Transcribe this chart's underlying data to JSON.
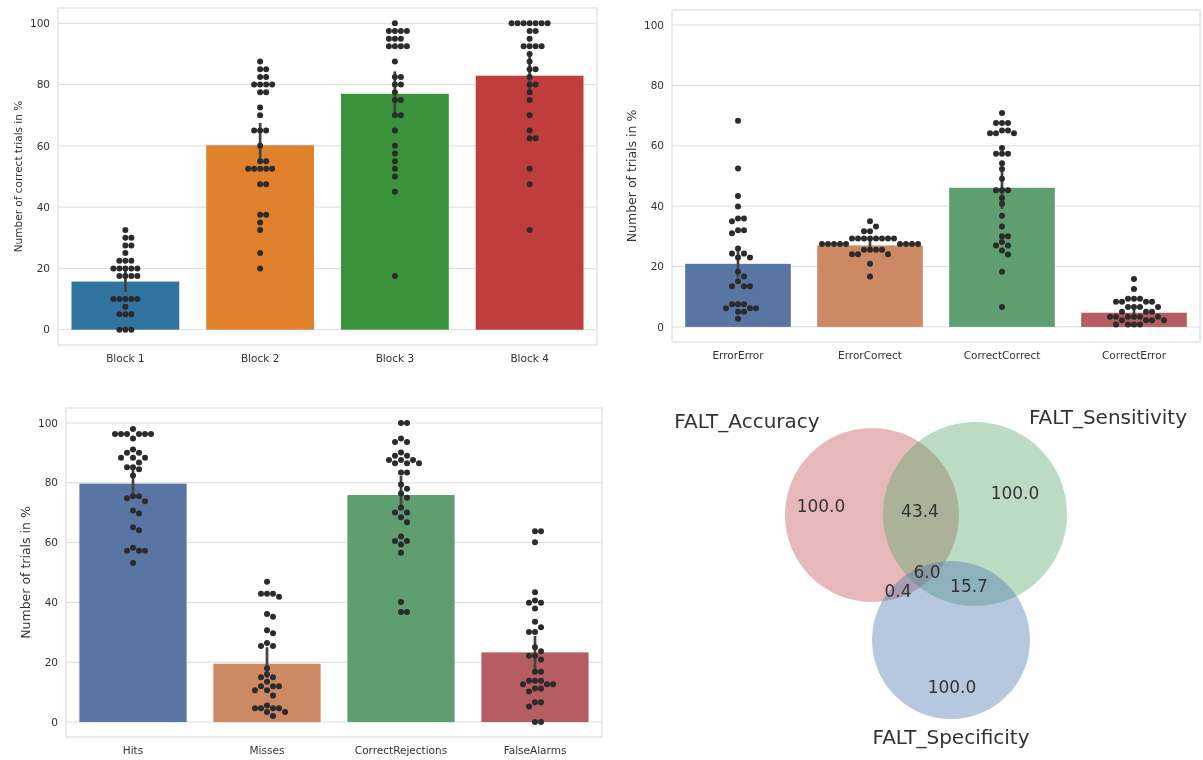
{
  "chart_data": [
    {
      "type": "bar",
      "ylabel": "Number of correct trials in %",
      "categories": [
        "Block 1",
        "Block 2",
        "Block 3",
        "Block 4"
      ],
      "ylim": [
        -5,
        105
      ],
      "yticks": [
        0,
        20,
        40,
        60,
        80,
        100
      ],
      "grid": "y",
      "series": [
        {
          "values": [
            15.7,
            60.2,
            77.0,
            82.9
          ],
          "colors": [
            "#3274a1",
            "#e1812c",
            "#3a923a",
            "#c03d3e"
          ],
          "errors": [
            [
              12.3,
              20.1
            ],
            [
              55.8,
              67.5
            ],
            [
              70.3,
              84.3
            ],
            [
              77.8,
              90.3
            ]
          ]
        },
        {
          "type": "scatter",
          "color": "#2b2b2b",
          "marker": "circle",
          "x": [
            "Block 1",
            "Block 1",
            "Block 1",
            "Block 1",
            "Block 1",
            "Block 1",
            "Block 1",
            "Block 1",
            "Block 1",
            "Block 1",
            "Block 1",
            "Block 1",
            "Block 1",
            "Block 1",
            "Block 1",
            "Block 1",
            "Block 1",
            "Block 1",
            "Block 1",
            "Block 1",
            "Block 1",
            "Block 1",
            "Block 1",
            "Block 1",
            "Block 1",
            "Block 1",
            "Block 1",
            "Block 1",
            "Block 1",
            "Block 1",
            "Block 2",
            "Block 2",
            "Block 2",
            "Block 2",
            "Block 2",
            "Block 2",
            "Block 2",
            "Block 2",
            "Block 2",
            "Block 2",
            "Block 2",
            "Block 2",
            "Block 2",
            "Block 2",
            "Block 2",
            "Block 2",
            "Block 2",
            "Block 2",
            "Block 2",
            "Block 2",
            "Block 2",
            "Block 2",
            "Block 2",
            "Block 2",
            "Block 2",
            "Block 2",
            "Block 2",
            "Block 2",
            "Block 2",
            "Block 2",
            "Block 2",
            "Block 2",
            "Block 3",
            "Block 3",
            "Block 3",
            "Block 3",
            "Block 3",
            "Block 3",
            "Block 3",
            "Block 3",
            "Block 3",
            "Block 3",
            "Block 3",
            "Block 3",
            "Block 3",
            "Block 3",
            "Block 3",
            "Block 3",
            "Block 3",
            "Block 3",
            "Block 3",
            "Block 3",
            "Block 3",
            "Block 3",
            "Block 3",
            "Block 3",
            "Block 3",
            "Block 3",
            "Block 3",
            "Block 3",
            "Block 3",
            "Block 3",
            "Block 4",
            "Block 4",
            "Block 4",
            "Block 4",
            "Block 4",
            "Block 4",
            "Block 4",
            "Block 4",
            "Block 4",
            "Block 4",
            "Block 4",
            "Block 4",
            "Block 4",
            "Block 4",
            "Block 4",
            "Block 4",
            "Block 4",
            "Block 4",
            "Block 4",
            "Block 4",
            "Block 4",
            "Block 4",
            "Block 4",
            "Block 4",
            "Block 4",
            "Block 4",
            "Block 4",
            "Block 4",
            "Block 4",
            "Block 4"
          ],
          "values": [
            32.5,
            30,
            30,
            27.5,
            27.5,
            25,
            22.5,
            22.5,
            22.5,
            20,
            20,
            20,
            20,
            20,
            17.5,
            17.5,
            17.5,
            17.5,
            10,
            10,
            10,
            10,
            10,
            7.5,
            5,
            5,
            5,
            0,
            0,
            0,
            87.5,
            85,
            85,
            82.5,
            82.5,
            80,
            80,
            80,
            80,
            77.5,
            77.5,
            72.5,
            70,
            65,
            65,
            65,
            60,
            55,
            55,
            52.5,
            52.5,
            52.5,
            52.5,
            52.5,
            47.5,
            47.5,
            37.5,
            37.5,
            35,
            32.5,
            25,
            20,
            100,
            97.5,
            97.5,
            97.5,
            97.5,
            95,
            95,
            95,
            92.5,
            92.5,
            92.5,
            92.5,
            87.5,
            82.5,
            82.5,
            80,
            80,
            77.5,
            75,
            75,
            70,
            70,
            65,
            60,
            57.5,
            55,
            52.5,
            50,
            45,
            17.5,
            100,
            100,
            100,
            100,
            100,
            100,
            100,
            97.5,
            97.5,
            95,
            92.5,
            92.5,
            92.5,
            92.5,
            90,
            87.5,
            85,
            85,
            82.5,
            80,
            80,
            77.5,
            75,
            70,
            65,
            62.5,
            62.5,
            52.5,
            47.5,
            32.5
          ]
        }
      ]
    },
    {
      "type": "bar",
      "ylabel": "Number of trials in %",
      "categories": [
        "ErrorError",
        "ErrorCorrect",
        "CorrectCorrect",
        "CorrectError"
      ],
      "ylim": [
        -5,
        105
      ],
      "yticks": [
        0,
        20,
        40,
        60,
        80,
        100
      ],
      "grid": "y",
      "series": [
        {
          "values": [
            20.9,
            27.0,
            46.1,
            4.7
          ],
          "colors": [
            "#5975a4",
            "#cc8963",
            "#5f9e6e",
            "#b55d60"
          ],
          "errors": [
            [
              16.4,
              26.6
            ],
            [
              25.3,
              28.7
            ],
            [
              39.1,
              53.1
            ],
            [
              3.5,
              6.3
            ]
          ]
        },
        {
          "type": "scatter",
          "color": "#2b2b2b",
          "marker": "circle",
          "x": [
            "ErrorError",
            "ErrorError",
            "ErrorError",
            "ErrorError",
            "ErrorError",
            "ErrorError",
            "ErrorError",
            "ErrorError",
            "ErrorError",
            "ErrorError",
            "ErrorError",
            "ErrorError",
            "ErrorError",
            "ErrorError",
            "ErrorError",
            "ErrorError",
            "ErrorError",
            "ErrorError",
            "ErrorError",
            "ErrorError",
            "ErrorError",
            "ErrorError",
            "ErrorError",
            "ErrorError",
            "ErrorError",
            "ErrorError",
            "ErrorError",
            "ErrorError",
            "ErrorError",
            "ErrorError",
            "ErrorCorrect",
            "ErrorCorrect",
            "ErrorCorrect",
            "ErrorCorrect",
            "ErrorCorrect",
            "ErrorCorrect",
            "ErrorCorrect",
            "ErrorCorrect",
            "ErrorCorrect",
            "ErrorCorrect",
            "ErrorCorrect",
            "ErrorCorrect",
            "ErrorCorrect",
            "ErrorCorrect",
            "ErrorCorrect",
            "ErrorCorrect",
            "ErrorCorrect",
            "ErrorCorrect",
            "ErrorCorrect",
            "ErrorCorrect",
            "ErrorCorrect",
            "ErrorCorrect",
            "ErrorCorrect",
            "ErrorCorrect",
            "ErrorCorrect",
            "ErrorCorrect",
            "ErrorCorrect",
            "ErrorCorrect",
            "ErrorCorrect",
            "ErrorCorrect",
            "CorrectCorrect",
            "CorrectCorrect",
            "CorrectCorrect",
            "CorrectCorrect",
            "CorrectCorrect",
            "CorrectCorrect",
            "CorrectCorrect",
            "CorrectCorrect",
            "CorrectCorrect",
            "CorrectCorrect",
            "CorrectCorrect",
            "CorrectCorrect",
            "CorrectCorrect",
            "CorrectCorrect",
            "CorrectCorrect",
            "CorrectCorrect",
            "CorrectCorrect",
            "CorrectCorrect",
            "CorrectCorrect",
            "CorrectCorrect",
            "CorrectCorrect",
            "CorrectCorrect",
            "CorrectCorrect",
            "CorrectCorrect",
            "CorrectCorrect",
            "CorrectCorrect",
            "CorrectCorrect",
            "CorrectCorrect",
            "CorrectCorrect",
            "CorrectCorrect",
            "CorrectCorrect",
            "CorrectCorrect",
            "CorrectError",
            "CorrectError",
            "CorrectError",
            "CorrectError",
            "CorrectError",
            "CorrectError",
            "CorrectError",
            "CorrectError",
            "CorrectError",
            "CorrectError",
            "CorrectError",
            "CorrectError",
            "CorrectError",
            "CorrectError",
            "CorrectError",
            "CorrectError",
            "CorrectError",
            "CorrectError",
            "CorrectError",
            "CorrectError",
            "CorrectError",
            "CorrectError",
            "CorrectError",
            "CorrectError",
            "CorrectError",
            "CorrectError",
            "CorrectError",
            "CorrectError",
            "CorrectError",
            "CorrectError"
          ],
          "values": [
            68.3,
            52.5,
            43.4,
            39.9,
            35.9,
            35.9,
            35,
            32,
            32,
            31,
            26,
            24.3,
            24.3,
            23,
            23,
            18.3,
            16.7,
            15.1,
            13.5,
            13.5,
            13.5,
            7.5,
            7.5,
            7.5,
            6.2,
            6.2,
            6.2,
            5,
            5,
            2.7,
            35,
            33.3,
            31.7,
            31.7,
            29.3,
            29.3,
            29.3,
            29.3,
            29.3,
            29.3,
            29.3,
            29.3,
            27.5,
            27.5,
            27.5,
            27.5,
            27.5,
            27.5,
            27.5,
            27.5,
            27.5,
            25.6,
            25.6,
            25.6,
            25.6,
            24.1,
            24.1,
            24.1,
            20.9,
            16.7,
            70.9,
            67.6,
            67.6,
            67.6,
            65.1,
            65.1,
            64.2,
            64.2,
            64.2,
            59.3,
            57.4,
            57.4,
            57.4,
            54.2,
            52.3,
            49.1,
            45.3,
            45.3,
            45.3,
            42.7,
            40.8,
            36.8,
            33.3,
            30,
            30,
            28.1,
            27,
            27,
            25.3,
            24,
            18.3,
            6.6,
            15.9,
            12.6,
            9.3,
            9.3,
            9.3,
            8.3,
            8.3,
            8.3,
            8.3,
            6.6,
            6.6,
            6.6,
            6.6,
            5,
            5,
            5,
            3.4,
            3.4,
            3.4,
            3.4,
            3.4,
            3.4,
            2.2,
            2.2,
            2.2,
            2.2,
            0.8,
            0.8,
            0.8,
            0.8
          ]
        }
      ]
    },
    {
      "type": "bar",
      "ylabel": "Number of trials in %",
      "categories": [
        "Hits",
        "Misses",
        "CorrectRejections",
        "FalseAlarms"
      ],
      "ylim": [
        -5,
        105
      ],
      "yticks": [
        0,
        20,
        40,
        60,
        80,
        100
      ],
      "grid": "y",
      "series": [
        {
          "values": [
            79.7,
            19.5,
            75.9,
            23.3
          ],
          "colors": [
            "#5975a4",
            "#cc8963",
            "#5f9e6e",
            "#b55d60"
          ],
          "errors": [
            [
              74.6,
              84.8
            ],
            [
              14.8,
              25
            ],
            [
              72.1,
              82.3
            ],
            [
              16,
              28.8
            ]
          ]
        },
        {
          "type": "scatter",
          "color": "#2b2b2b",
          "marker": "circle",
          "x": [
            "Hits",
            "Hits",
            "Hits",
            "Hits",
            "Hits",
            "Hits",
            "Hits",
            "Hits",
            "Hits",
            "Hits",
            "Hits",
            "Hits",
            "Hits",
            "Hits",
            "Hits",
            "Hits",
            "Hits",
            "Hits",
            "Hits",
            "Hits",
            "Hits",
            "Hits",
            "Hits",
            "Hits",
            "Hits",
            "Hits",
            "Hits",
            "Hits",
            "Hits",
            "Hits",
            "Hits",
            "Hits",
            "Misses",
            "Misses",
            "Misses",
            "Misses",
            "Misses",
            "Misses",
            "Misses",
            "Misses",
            "Misses",
            "Misses",
            "Misses",
            "Misses",
            "Misses",
            "Misses",
            "Misses",
            "Misses",
            "Misses",
            "Misses",
            "Misses",
            "Misses",
            "Misses",
            "Misses",
            "Misses",
            "Misses",
            "Misses",
            "Misses",
            "Misses",
            "Misses",
            "Misses",
            "Misses",
            "Misses",
            "CorrectRejections",
            "CorrectRejections",
            "CorrectRejections",
            "CorrectRejections",
            "CorrectRejections",
            "CorrectRejections",
            "CorrectRejections",
            "CorrectRejections",
            "CorrectRejections",
            "CorrectRejections",
            "CorrectRejections",
            "CorrectRejections",
            "CorrectRejections",
            "CorrectRejections",
            "CorrectRejections",
            "CorrectRejections",
            "CorrectRejections",
            "CorrectRejections",
            "CorrectRejections",
            "CorrectRejections",
            "CorrectRejections",
            "CorrectRejections",
            "CorrectRejections",
            "CorrectRejections",
            "CorrectRejections",
            "CorrectRejections",
            "CorrectRejections",
            "CorrectRejections",
            "CorrectRejections",
            "CorrectRejections",
            "CorrectRejections",
            "CorrectRejections",
            "CorrectRejections",
            "FalseAlarms",
            "FalseAlarms",
            "FalseAlarms",
            "FalseAlarms",
            "FalseAlarms",
            "FalseAlarms",
            "FalseAlarms",
            "FalseAlarms",
            "FalseAlarms",
            "FalseAlarms",
            "FalseAlarms",
            "FalseAlarms",
            "FalseAlarms",
            "FalseAlarms",
            "FalseAlarms",
            "FalseAlarms",
            "FalseAlarms",
            "FalseAlarms",
            "FalseAlarms",
            "FalseAlarms",
            "FalseAlarms",
            "FalseAlarms",
            "FalseAlarms",
            "FalseAlarms",
            "FalseAlarms",
            "FalseAlarms",
            "FalseAlarms",
            "FalseAlarms",
            "FalseAlarms",
            "FalseAlarms",
            "FalseAlarms",
            "FalseAlarms",
            "FalseAlarms"
          ],
          "values": [
            98,
            96.3,
            96.3,
            96.3,
            96.3,
            96.3,
            96.3,
            94.8,
            91.1,
            90,
            90,
            88.4,
            88.4,
            88.4,
            86.8,
            85.2,
            85.2,
            84.5,
            82.4,
            75.5,
            75.5,
            74.8,
            73.8,
            70.7,
            69.7,
            65.1,
            64.1,
            58.3,
            57.3,
            57.3,
            57.3,
            53.2,
            46.9,
            42.9,
            42.9,
            42.9,
            41.9,
            36.1,
            35.2,
            30.7,
            29.7,
            26.4,
            25.4,
            25.4,
            18,
            16,
            15,
            15,
            13.5,
            12,
            12,
            12,
            10.6,
            10.6,
            8.9,
            5.5,
            4.6,
            4.6,
            4.6,
            4.6,
            3.4,
            3.4,
            2,
            100,
            100,
            94.8,
            93.6,
            93.6,
            90.1,
            89,
            89,
            87.6,
            87.6,
            87.6,
            86.5,
            86.5,
            86.5,
            83.4,
            83.4,
            79.4,
            78,
            76.4,
            75,
            71.7,
            70.1,
            70.1,
            68.5,
            66.8,
            62,
            60.5,
            60.5,
            59.4,
            56.6,
            40.1,
            36.8,
            36.8,
            63.8,
            63.8,
            60.1,
            43.4,
            40.6,
            39.9,
            39.9,
            38,
            33.5,
            31.7,
            30.1,
            30.1,
            25,
            23.7,
            22.2,
            22.2,
            20.9,
            16.8,
            16.8,
            13.8,
            13.8,
            13.8,
            12.6,
            12.6,
            12.6,
            11.2,
            11.2,
            10.2,
            6.6,
            6.6,
            5.2,
            0,
            0
          ]
        }
      ]
    },
    {
      "type": "other",
      "categories": [
        "FALT_Accuracy",
        "FALT_Sensitivity",
        "FALT_Specificity"
      ],
      "values": [
        100,
        100,
        100
      ],
      "value_labels": [
        "100.0",
        "100.0",
        "100.0"
      ],
      "colors": [
        "#c44e52",
        "#55a868",
        "#4c72b0"
      ],
      "annotations": [
        "43.4",
        "6.0",
        "0.4",
        "15.7"
      ]
    }
  ]
}
